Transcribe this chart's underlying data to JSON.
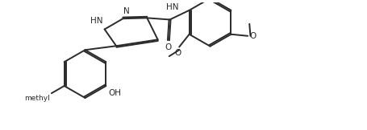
{
  "background_color": "#ffffff",
  "line_color": "#2a2a2a",
  "line_width": 1.4,
  "font_size": 7.5,
  "fig_width": 4.56,
  "fig_height": 1.62,
  "dpi": 100,
  "xlim": [
    0,
    9.5
  ],
  "ylim": [
    -0.3,
    3.5
  ]
}
